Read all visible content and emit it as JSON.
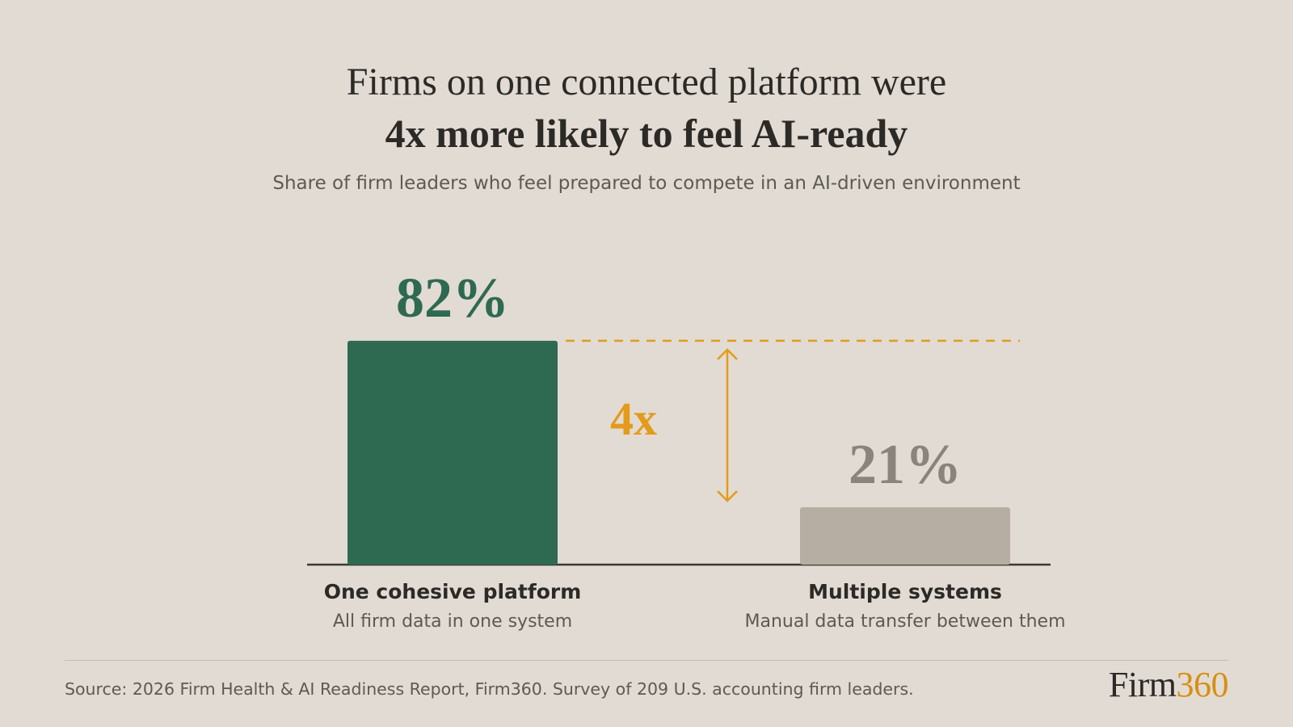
{
  "header": {
    "title_line1": "Firms on one connected platform were",
    "title_line2": "4x more likely to feel AI-ready",
    "subtitle": "Share of firm leaders who feel prepared to compete in an AI-driven environment"
  },
  "chart_data": {
    "type": "bar",
    "title": "Firms on one connected platform were 4x more likely to feel AI-ready",
    "subtitle": "Share of firm leaders who feel prepared to compete in an AI-driven environment",
    "categories": [
      "One cohesive platform",
      "Multiple systems"
    ],
    "descriptions": [
      "All firm data in one system",
      "Manual data transfer between them"
    ],
    "values": [
      82,
      21
    ],
    "value_labels": [
      "82%",
      "21%"
    ],
    "unit": "%",
    "ylim": [
      0,
      100
    ],
    "grid": false,
    "annotation": {
      "label": "4x",
      "from_value": 21,
      "to_value": 82
    }
  },
  "colors": {
    "background": "#e2dbd3",
    "primary_bar": "#2e6a52",
    "secondary_bar": "#b6ada3",
    "accent": "#e39b1a",
    "secondary_value": "#8a847c",
    "text": "#2c2a27"
  },
  "footer": {
    "source": "Source: 2026 Firm Health & AI Readiness Report, Firm360. Survey of 209 U.S. accounting firm leaders.",
    "logo_text_a": "Firm",
    "logo_text_b": "360"
  }
}
